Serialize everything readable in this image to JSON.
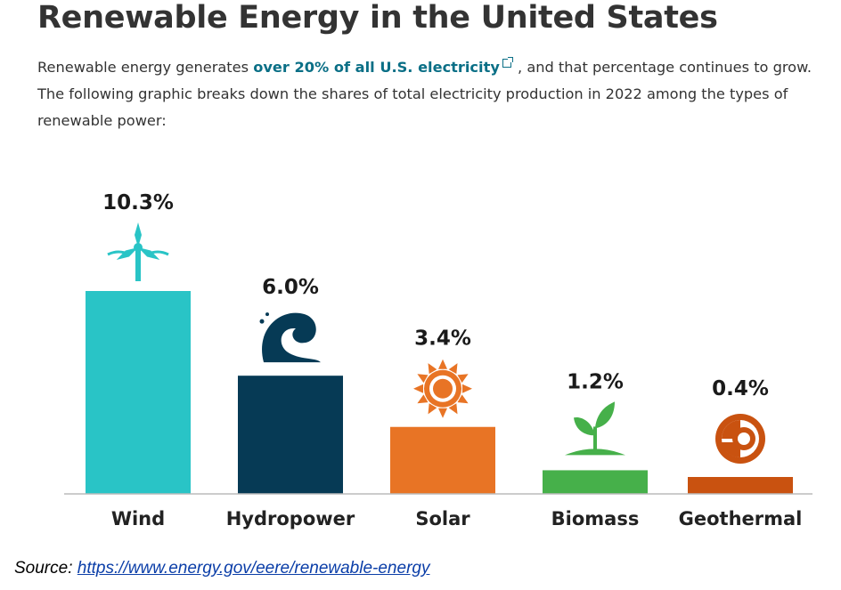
{
  "header": {
    "title": "Renewable Energy in the United States",
    "intro_before": "Renewable energy generates",
    "intro_link": "over 20% of all U.S. electricity",
    "intro_after": ", and that percentage continues to grow. The following graphic breaks down the shares of total electricity production in 2022 among the types of renewable power:"
  },
  "chart_data": {
    "type": "bar",
    "categories": [
      "Wind",
      "Hydropower",
      "Solar",
      "Biomass",
      "Geothermal"
    ],
    "values": [
      10.3,
      6.0,
      3.4,
      1.2,
      0.4
    ],
    "value_labels": [
      "10.3%",
      "6.0%",
      "3.4%",
      "1.2%",
      "0.4%"
    ],
    "colors": [
      "#29c4c6",
      "#063a55",
      "#e87425",
      "#46b04a",
      "#c95210"
    ],
    "icons": [
      "wind-turbine-icon",
      "water-wave-icon",
      "sun-icon",
      "sprout-icon",
      "geothermal-globe-icon"
    ],
    "title": "",
    "xlabel": "",
    "ylabel": "",
    "ylim": [
      0,
      10.3
    ],
    "grid": false
  },
  "footer": {
    "source_label": "Source:",
    "source_url": "https://www.energy.gov/eere/renewable-energy"
  }
}
